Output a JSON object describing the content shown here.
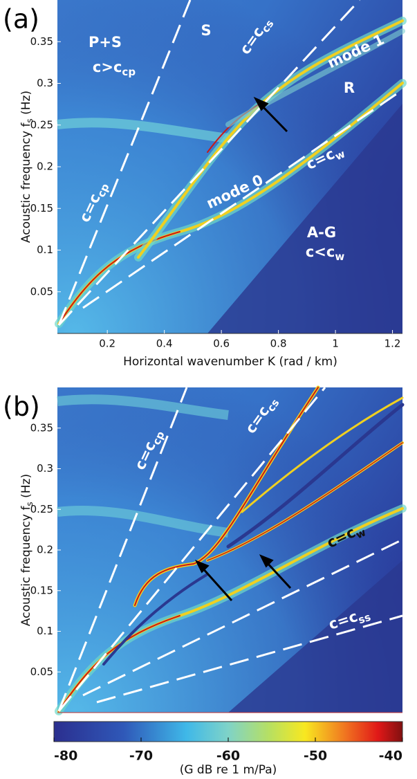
{
  "chart_data": {
    "type": "heatmap",
    "panels": [
      {
        "label": "(a)",
        "xlim": [
          0.025,
          1.235
        ],
        "ylim": [
          0,
          0.4
        ],
        "xticks": [
          0.2,
          0.4,
          0.6,
          0.8,
          1,
          1.2
        ],
        "yticks": [
          0.05,
          0.1,
          0.15,
          0.2,
          0.25,
          0.3,
          0.35
        ],
        "xlabel": "Horizontal wavenumber K (rad / km)",
        "ylabel": "Acoustic frequency  f",
        "ylabel_sub": "s",
        "ylabel_unit": " (Hz)",
        "annotations": [
          {
            "text": "P+S"
          },
          {
            "text": "c>c",
            "sub": "cp"
          },
          {
            "text": "S"
          },
          {
            "text": "c=c",
            "sub": "cs"
          },
          {
            "text": "mode 1"
          },
          {
            "text": "R"
          },
          {
            "text": "mode 0"
          },
          {
            "text": "c=c",
            "sub": "w"
          },
          {
            "text": "A-G"
          },
          {
            "text": "c<c",
            "sub": "w"
          },
          {
            "text": "c=c",
            "sub": "cp"
          }
        ]
      },
      {
        "label": "(b)",
        "xlim": [
          0.025,
          1.235
        ],
        "ylim": [
          0,
          0.4
        ],
        "yticks": [
          0.05,
          0.1,
          0.15,
          0.2,
          0.25,
          0.3,
          0.35
        ],
        "ylabel": "Acoustic frequency  f",
        "ylabel_sub": "s",
        "ylabel_unit": " (Hz)",
        "annotations": [
          {
            "text": "c=c",
            "sub": "cp"
          },
          {
            "text": "c=c",
            "sub": "cs"
          },
          {
            "text": "c=c",
            "sub": "w"
          },
          {
            "text": "c=c",
            "sub": "ss"
          }
        ]
      }
    ],
    "colorbar": {
      "label": "(G  dB re 1 m/Pa)",
      "clim": [
        -80,
        -40
      ],
      "ticks": [
        -80,
        -70,
        -60,
        -50,
        -40
      ]
    }
  }
}
